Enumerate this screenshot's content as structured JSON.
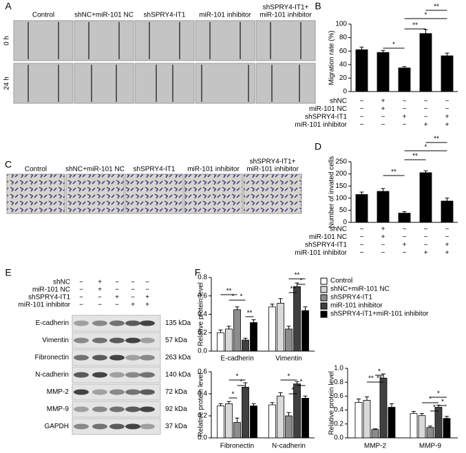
{
  "panel_A": {
    "panel_label": "A",
    "columns": [
      "Control",
      "shNC+miR-101 NC",
      "shSPRY4-IT1",
      "miR-101 inhibitor",
      [
        "shSPRY4-IT1+",
        "miR-101 inhibitor"
      ]
    ],
    "rows": [
      "0 h",
      "24 h"
    ]
  },
  "panel_C": {
    "panel_label": "C",
    "columns": [
      "Control",
      "shNC+miR-101 NC",
      "shSPRY4-IT1",
      "miR-101 inhibitor",
      [
        "shSPRY4-IT1+",
        "miR-101 inhibitor"
      ]
    ]
  },
  "panel_E": {
    "panel_label": "E",
    "treatments": {
      "rows": [
        "shNC",
        "miR-101 NC",
        "shSPRY4-IT1",
        "miR-101 inhibitor"
      ],
      "signs": [
        [
          "−",
          "+",
          "−",
          "−",
          "−"
        ],
        [
          "−",
          "+",
          "−",
          "−",
          "−"
        ],
        [
          "−",
          "−",
          "+",
          "−",
          "+"
        ],
        [
          "−",
          "−",
          "−",
          "+",
          "+"
        ]
      ]
    },
    "proteins": [
      "E-cadherin",
      "Vimentin",
      "Fibronectin",
      "N-cadherin",
      "MMP-2",
      "MMP-9",
      "GAPDH"
    ],
    "sizes": [
      "135 kDa",
      "57 kDa",
      "263 kDa",
      "140 kDa",
      "72 kDa",
      "92 kDa",
      "37 kDa"
    ]
  },
  "chart_data": [
    {
      "type": "bar",
      "panel_label": "B",
      "y_label": "Migration rate (%)",
      "categories": [
        null,
        null,
        null,
        null,
        null
      ],
      "values": [
        62,
        58,
        35,
        86,
        53
      ],
      "errors": [
        4,
        3,
        2,
        6,
        4
      ],
      "color": "#000000",
      "ylim": [
        0,
        100
      ],
      "yticks": [
        0,
        20,
        40,
        60,
        80,
        100
      ],
      "significance": [
        "*",
        "**",
        "*",
        "**"
      ],
      "treatments": {
        "rows": [
          "shNC",
          "miR-101 NC",
          "shSPRY4-IT1",
          "miR-101 inhibitor"
        ],
        "signs": [
          [
            "−",
            "+",
            "−",
            "−",
            "−"
          ],
          [
            "−",
            "+",
            "−",
            "−",
            "−"
          ],
          [
            "−",
            "−",
            "+",
            "−",
            "+"
          ],
          [
            "−",
            "−",
            "−",
            "+",
            "+"
          ]
        ]
      }
    },
    {
      "type": "bar",
      "panel_label": "D",
      "y_label": "Number of invated cells",
      "categories": [
        null,
        null,
        null,
        null,
        null
      ],
      "values": [
        115,
        128,
        38,
        205,
        88
      ],
      "errors": [
        10,
        12,
        6,
        8,
        12
      ],
      "color": "#000000",
      "ylim": [
        0,
        250
      ],
      "yticks": [
        0,
        50,
        100,
        150,
        200,
        250
      ],
      "significance": [
        "**",
        "**",
        "*",
        "**"
      ],
      "treatments": {
        "rows": [
          "shNC",
          "miR-101 NC",
          "shSPRY4-IT1",
          "miR-101 inhibitor"
        ],
        "signs": [
          [
            "−",
            "+",
            "−",
            "−",
            "−"
          ],
          [
            "−",
            "+",
            "−",
            "−",
            "−"
          ],
          [
            "−",
            "−",
            "+",
            "−",
            "+"
          ],
          [
            "−",
            "−",
            "−",
            "+",
            "+"
          ]
        ]
      }
    },
    {
      "type": "grouped_bar",
      "panel_label": "F",
      "y_label": "Relative protein level",
      "categories": [
        "E-cadherin",
        "Vimentin"
      ],
      "series": [
        {
          "name": "Control",
          "color": "#ffffff",
          "values": [
            0.2,
            0.48
          ],
          "errors": [
            0.03,
            0.03
          ]
        },
        {
          "name": "shNC+miR-101 NC",
          "color": "#d9d9d9",
          "values": [
            0.24,
            0.52
          ],
          "errors": [
            0.03,
            0.05
          ]
        },
        {
          "name": "shSPRY4-IT1",
          "color": "#8c8c8c",
          "values": [
            0.45,
            0.24
          ],
          "errors": [
            0.03,
            0.03
          ]
        },
        {
          "name": "miR-101 inhibitor",
          "color": "#404040",
          "values": [
            0.12,
            0.7
          ],
          "errors": [
            0.02,
            0.04
          ]
        },
        {
          "name": "shSPRY4-IT1+miR-101 inhibitor",
          "color": "#000000",
          "values": [
            0.31,
            0.44
          ],
          "errors": [
            0.03,
            0.04
          ]
        }
      ],
      "ylim": [
        0,
        0.8
      ],
      "yticks": [
        {
          "value": 0,
          "label": "0.0"
        },
        0.2,
        0.4,
        0.6,
        0.8
      ],
      "significance": [
        "*",
        "**",
        "*",
        "**",
        "**",
        "*",
        "**"
      ]
    },
    {
      "type": "grouped_bar",
      "y_label": "Relative protein level",
      "categories": [
        "Fibronectin",
        "N-cadherin"
      ],
      "series": [
        {
          "color": "#ffffff",
          "values": [
            0.29,
            0.3
          ],
          "errors": [
            0.02,
            0.02
          ]
        },
        {
          "color": "#d9d9d9",
          "values": [
            0.31,
            0.38
          ],
          "errors": [
            0.02,
            0.03
          ]
        },
        {
          "color": "#8c8c8c",
          "values": [
            0.14,
            0.2
          ],
          "errors": [
            0.04,
            0.03
          ]
        },
        {
          "color": "#404040",
          "values": [
            0.46,
            0.49
          ],
          "errors": [
            0.04,
            0.02
          ]
        },
        {
          "color": "#000000",
          "values": [
            0.29,
            0.36
          ],
          "errors": [
            0.02,
            0.02
          ]
        }
      ],
      "ylim": [
        0,
        0.6
      ],
      "yticks": [
        {
          "value": 0,
          "label": "0.0"
        },
        0.2,
        0.4,
        0.6
      ],
      "significance": [
        "*",
        "*",
        "*",
        "*",
        "*",
        "*"
      ]
    },
    {
      "type": "grouped_bar",
      "y_label": "Relative protein level",
      "categories": [
        "MMP-2",
        "MMP-9"
      ],
      "series": [
        {
          "color": "#ffffff",
          "values": [
            0.51,
            0.35
          ],
          "errors": [
            0.05,
            0.03
          ]
        },
        {
          "color": "#d9d9d9",
          "values": [
            0.54,
            0.32
          ],
          "errors": [
            0.05,
            0.03
          ]
        },
        {
          "color": "#8c8c8c",
          "values": [
            0.12,
            0.15
          ],
          "errors": [
            0.01,
            0.02
          ]
        },
        {
          "color": "#404040",
          "values": [
            0.86,
            0.44
          ],
          "errors": [
            0.06,
            0.03
          ]
        },
        {
          "color": "#000000",
          "values": [
            0.44,
            0.28
          ],
          "errors": [
            0.05,
            0.03
          ]
        }
      ],
      "ylim": [
        0,
        1.0
      ],
      "yticks": [
        {
          "value": 0,
          "label": "0.0"
        },
        0.2,
        0.4,
        0.6,
        0.8,
        {
          "value": 1,
          "label": "1.0"
        }
      ],
      "significance": [
        "**",
        "**",
        "*",
        "*",
        "*",
        "*",
        "*"
      ]
    }
  ]
}
